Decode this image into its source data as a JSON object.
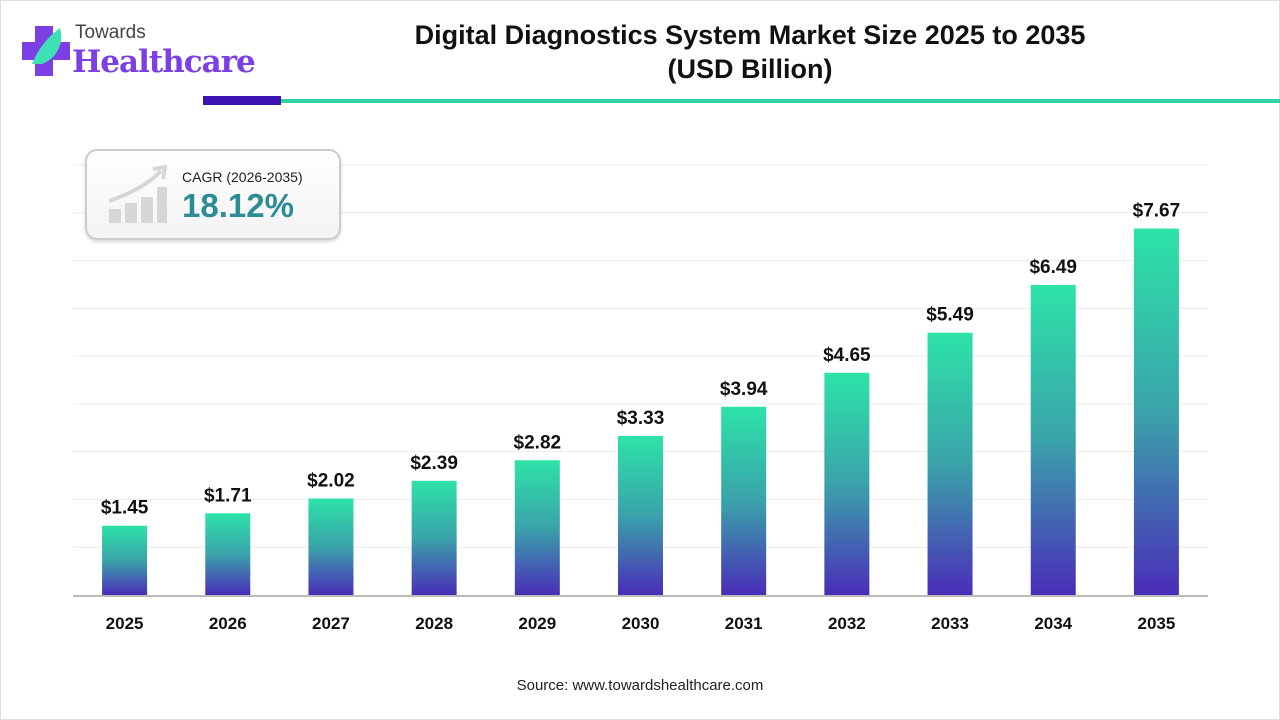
{
  "logo": {
    "top": "Towards",
    "main": "Healthcare"
  },
  "title_line1": "Digital Diagnostics System Market Size 2025 to 2035",
  "title_line2": "(USD Billion)",
  "cagr": {
    "label": "CAGR (2026-2035)",
    "value": "18.12%"
  },
  "source": "Source: www.towardshealthcare.com",
  "colors": {
    "bar_top": "#2de3a8",
    "bar_mid": "#3aa3aa",
    "bar_bottom": "#4a2db8",
    "accent_dark": "#3a13b0",
    "accent_teal": "#2ed3a4",
    "cagr_value": "#2b8c96"
  },
  "chart_data": {
    "type": "bar",
    "title": "Digital Diagnostics System Market Size 2025 to 2035 (USD Billion)",
    "categories": [
      "2025",
      "2026",
      "2027",
      "2028",
      "2029",
      "2030",
      "2031",
      "2032",
      "2033",
      "2034",
      "2035"
    ],
    "values": [
      1.45,
      1.71,
      2.02,
      2.39,
      2.82,
      3.33,
      3.94,
      4.65,
      5.49,
      6.49,
      7.67
    ],
    "data_labels": [
      "$1.45",
      "$1.71",
      "$2.02",
      "$2.39",
      "$2.82",
      "$3.33",
      "$3.94",
      "$4.65",
      "$5.49",
      "$6.49",
      "$7.67"
    ],
    "xlabel": "",
    "ylabel": "",
    "ylim": [
      0,
      9
    ],
    "grid": true,
    "y_tick_labels_shown": false
  }
}
